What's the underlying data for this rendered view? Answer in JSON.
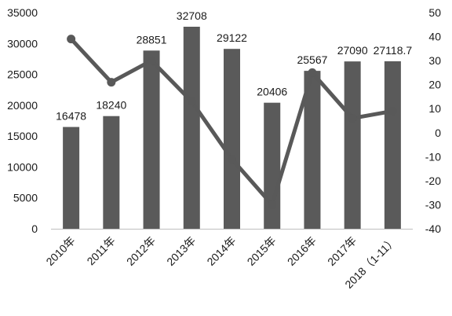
{
  "chart_data": {
    "type": "bar",
    "combo": "bar-with-line",
    "categories": [
      "2010年",
      "2011年",
      "2012年",
      "2013年",
      "2014年",
      "2015年",
      "2016年",
      "2017年",
      "2018（1-11）"
    ],
    "series": [
      {
        "kind": "bar",
        "axis": "left",
        "values": [
          16478,
          18240,
          28851,
          32708,
          29122,
          20406,
          25567,
          27090,
          27118.7
        ],
        "data_labels": [
          "16478",
          "18240",
          "28851",
          "32708",
          "29122",
          "20406",
          "25567",
          "27090",
          "27118.7"
        ],
        "color": "#5a5a5a"
      },
      {
        "kind": "line",
        "axis": "right",
        "values": [
          39,
          21,
          30,
          13,
          -11,
          -30,
          25,
          6,
          9
        ],
        "color": "#595959"
      }
    ],
    "left_axis": {
      "ylim": [
        0,
        35000
      ],
      "ticks": [
        "0",
        "5000",
        "10000",
        "15000",
        "20000",
        "25000",
        "30000",
        "35000"
      ]
    },
    "right_axis": {
      "ylim": [
        -40,
        50
      ],
      "ticks": [
        "-40",
        "-30",
        "-20",
        "-10",
        "0",
        "10",
        "20",
        "30",
        "40",
        "50"
      ]
    },
    "grid": false,
    "legend": "none",
    "title": "",
    "xlabel": "",
    "ylabel": ""
  }
}
